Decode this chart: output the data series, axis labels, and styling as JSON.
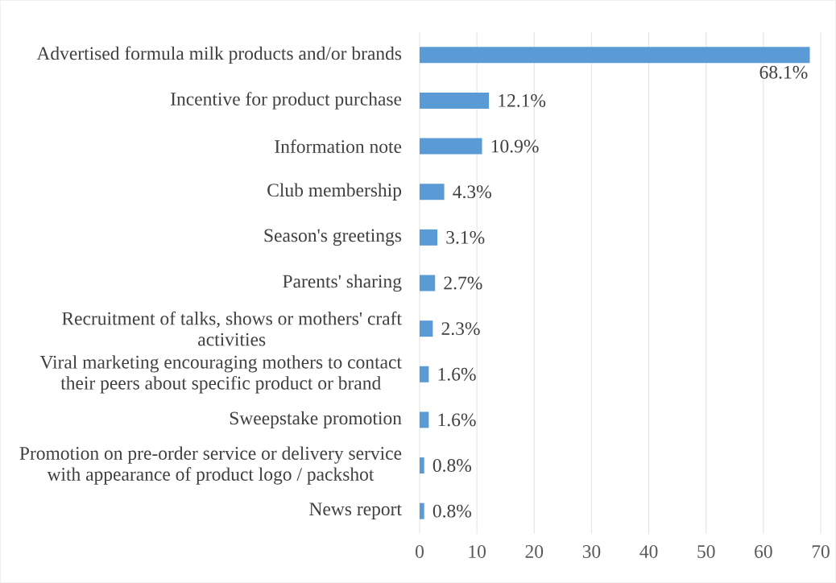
{
  "chart_data": {
    "type": "bar",
    "orientation": "horizontal",
    "categories": [
      "Advertised formula milk products and/or brands",
      "Incentive for product purchase",
      "Information note",
      "Club membership",
      "Season's greetings",
      "Parents' sharing",
      "Recruitment of talks, shows or mothers' craft activities",
      "Viral marketing encouraging mothers to contact their peers about specific product or brand",
      "Sweepstake promotion",
      "Promotion on pre-order service or delivery service with appearance of product logo / packshot",
      "News report"
    ],
    "values": [
      68.1,
      12.1,
      10.9,
      4.3,
      3.1,
      2.7,
      2.3,
      1.6,
      1.6,
      0.8,
      0.8
    ],
    "value_labels": [
      "68.1%",
      "12.1%",
      "10.9%",
      "4.3%",
      "3.1%",
      "2.7%",
      "2.3%",
      "1.6%",
      "1.6%",
      "0.8%",
      "0.8%"
    ],
    "color": "#5b9bd5",
    "xlim": [
      0,
      70
    ],
    "xticks": [
      0,
      10,
      20,
      30,
      40,
      50,
      60,
      70
    ],
    "grid": "x"
  }
}
